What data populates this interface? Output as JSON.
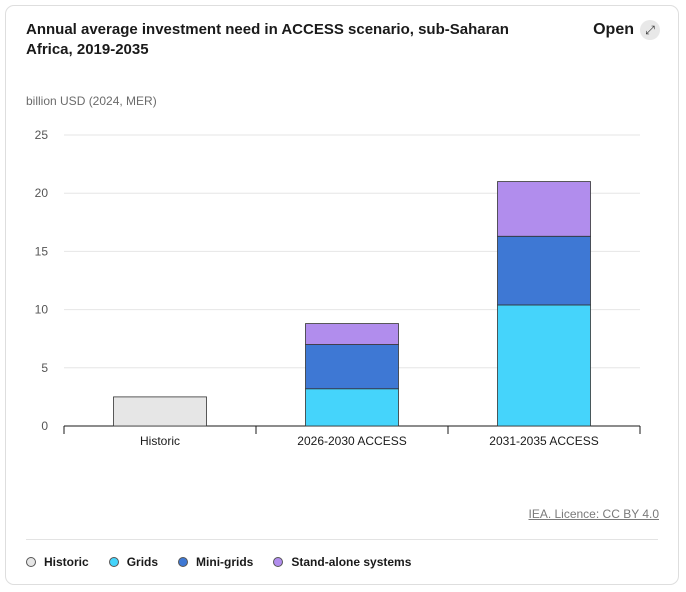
{
  "title": "Annual average investment need in ACCESS scenario, sub-Saharan Africa, 2019-2035",
  "open_label": "Open",
  "open_icon": "expand-icon",
  "unit_label": "billion USD (2024, MER)",
  "credit": "IEA. Licence: CC BY 4.0",
  "legend": [
    {
      "label": "Historic",
      "color": "#e6e6e6"
    },
    {
      "label": "Grids",
      "color": "#45d4fb"
    },
    {
      "label": "Mini-grids",
      "color": "#3e78d4"
    },
    {
      "label": "Stand-alone systems",
      "color": "#b18ded"
    }
  ],
  "chart_data": {
    "type": "bar",
    "stacked": true,
    "categories": [
      "Historic",
      "2026-2030 ACCESS",
      "2031-2035 ACCESS"
    ],
    "series": [
      {
        "name": "Historic",
        "color": "#e6e6e6",
        "values": [
          2.5,
          0,
          0
        ]
      },
      {
        "name": "Grids",
        "color": "#45d4fb",
        "values": [
          0,
          3.2,
          10.4
        ]
      },
      {
        "name": "Mini-grids",
        "color": "#3e78d4",
        "values": [
          0,
          3.8,
          5.9
        ]
      },
      {
        "name": "Stand-alone systems",
        "color": "#b18ded",
        "values": [
          0,
          1.8,
          4.7
        ]
      }
    ],
    "ylabel": "billion USD (2024, MER)",
    "ylim": [
      0,
      25
    ],
    "yticks": [
      0,
      5,
      10,
      15,
      20,
      25
    ],
    "grid": true,
    "legend_position": "bottom"
  }
}
